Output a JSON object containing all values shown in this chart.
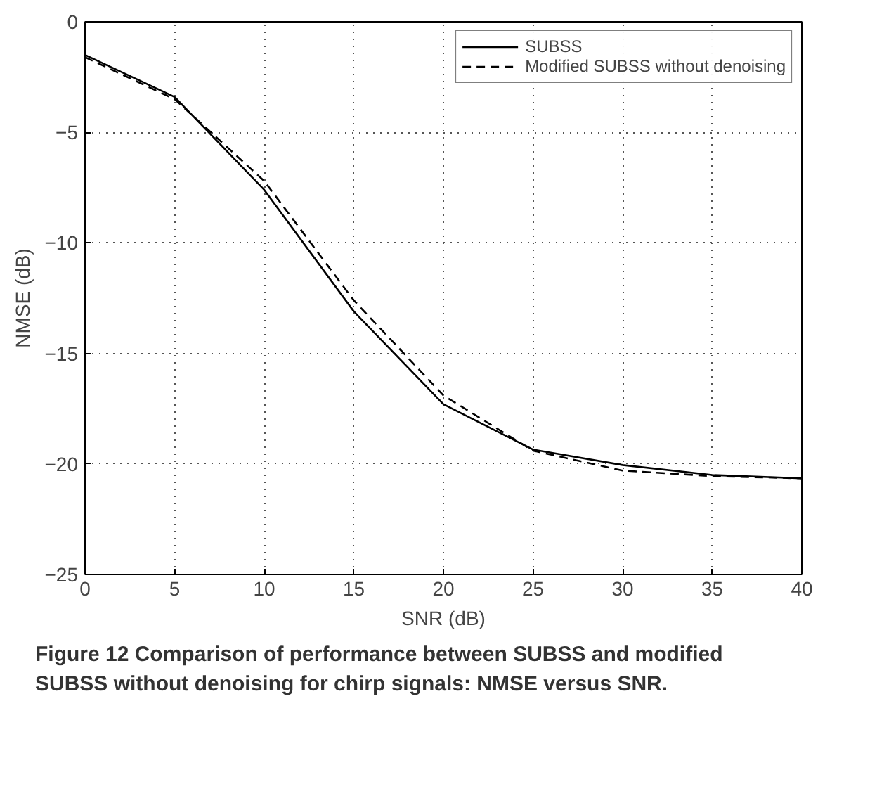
{
  "chart_data": {
    "type": "line",
    "xlabel": "SNR (dB)",
    "ylabel": "NMSE (dB)",
    "x": [
      0,
      5,
      10,
      15,
      20,
      25,
      30,
      35,
      40
    ],
    "series": [
      {
        "name": "SUBSS",
        "color": "#000000",
        "line_style": "solid",
        "values": [
          -1.5,
          -3.4,
          -7.6,
          -13.1,
          -17.3,
          -19.35,
          -20.05,
          -20.5,
          -20.65
        ]
      },
      {
        "name": "Modified SUBSS without denoising",
        "color": "#000000",
        "line_style": "dashed",
        "values": [
          -1.6,
          -3.5,
          -7.2,
          -12.6,
          -16.9,
          -19.4,
          -20.3,
          -20.55,
          -20.65
        ]
      }
    ],
    "xlim": [
      0,
      40
    ],
    "ylim": [
      -25,
      0
    ],
    "xticks": [
      0,
      5,
      10,
      15,
      20,
      25,
      30,
      35,
      40
    ],
    "yticks": [
      -25,
      -20,
      -15,
      -10,
      -5,
      0
    ],
    "grid": true,
    "legend": "top right",
    "marker": "none",
    "annotations": [
      "Figure 12 Comparison of performance between SUBSS and modified SUBSS without denoising for chirp signals: NMSE versus SNR."
    ]
  }
}
